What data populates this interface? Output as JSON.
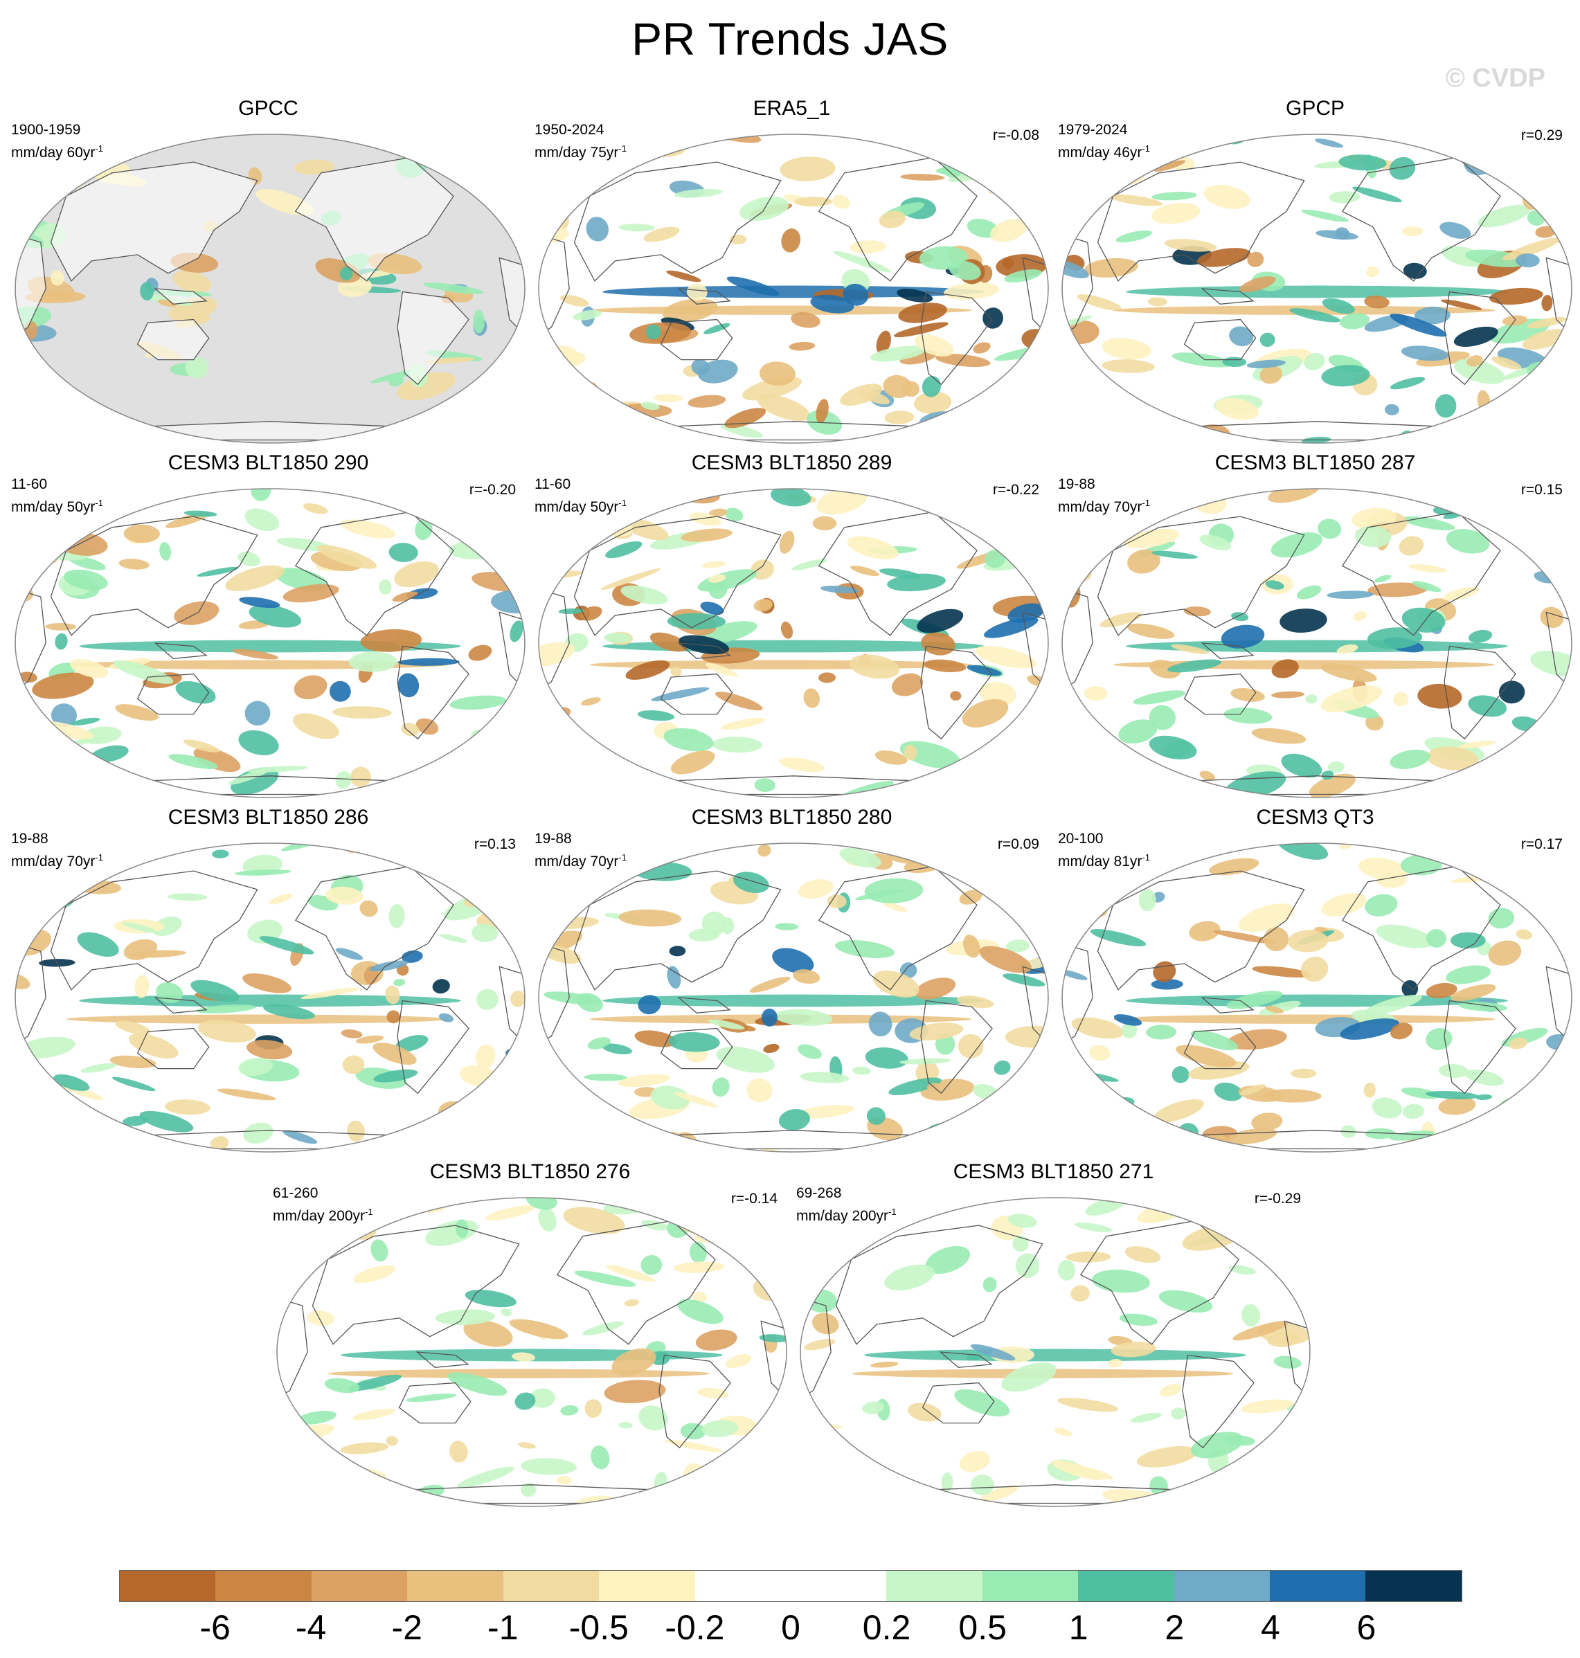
{
  "title": "PR Trends JAS",
  "watermark": "© CVDP",
  "panels": [
    {
      "title": "GPCC",
      "period": "1900-1959",
      "units": "mm/day 60yr",
      "exponent": "-1",
      "corr": "",
      "style": "obs"
    },
    {
      "title": "ERA5_1",
      "period": "1950-2024",
      "units": "mm/day 75yr",
      "exponent": "-1",
      "corr": "r=-0.08",
      "style": "era"
    },
    {
      "title": "GPCP",
      "period": "1979-2024",
      "units": "mm/day 46yr",
      "exponent": "-1",
      "corr": "r=0.29",
      "style": "gpcp"
    },
    {
      "title": "CESM3 BLT1850 290",
      "period": "11-60",
      "units": "mm/day 50yr",
      "exponent": "-1",
      "corr": "r=-0.20",
      "style": "model"
    },
    {
      "title": "CESM3 BLT1850 289",
      "period": "11-60",
      "units": "mm/day 50yr",
      "exponent": "-1",
      "corr": "r=-0.22",
      "style": "model"
    },
    {
      "title": "CESM3 BLT1850 287",
      "period": "19-88",
      "units": "mm/day 70yr",
      "exponent": "-1",
      "corr": "r=0.15",
      "style": "model"
    },
    {
      "title": "CESM3 BLT1850 286",
      "period": "19-88",
      "units": "mm/day 70yr",
      "exponent": "-1",
      "corr": "r=0.13",
      "style": "model"
    },
    {
      "title": "CESM3 BLT1850 280",
      "period": "19-88",
      "units": "mm/day 70yr",
      "exponent": "-1",
      "corr": "r=0.09",
      "style": "model"
    },
    {
      "title": "CESM3 QT3",
      "period": "20-100",
      "units": "mm/day 81yr",
      "exponent": "-1",
      "corr": "r=0.17",
      "style": "model"
    },
    {
      "title": "CESM3 BLT1850 276",
      "period": "61-260",
      "units": "mm/day 200yr",
      "exponent": "-1",
      "corr": "r=-0.14",
      "style": "weak"
    },
    {
      "title": "CESM3 BLT1850 271",
      "period": "69-268",
      "units": "mm/day 200yr",
      "exponent": "-1",
      "corr": "r=-0.29",
      "style": "weak"
    }
  ],
  "colorbar": {
    "colors": [
      "#b5682a",
      "#cb8643",
      "#dba264",
      "#e9c07e",
      "#f2dba0",
      "#fdf2c0",
      "#ffffff",
      "#ffffff",
      "#c7f6c8",
      "#99ebb4",
      "#4fbfa2",
      "#6faac8",
      "#1f6fae",
      "#06334f"
    ],
    "labels": [
      "-6",
      "-4",
      "-2",
      "-1",
      "-0.5",
      "-0.2",
      "0",
      "0.2",
      "0.5",
      "1",
      "2",
      "4",
      "6"
    ]
  },
  "colors": {
    "land_outline": "#555555",
    "mask_gray": "#e0e0e0",
    "frame": "#888888"
  }
}
